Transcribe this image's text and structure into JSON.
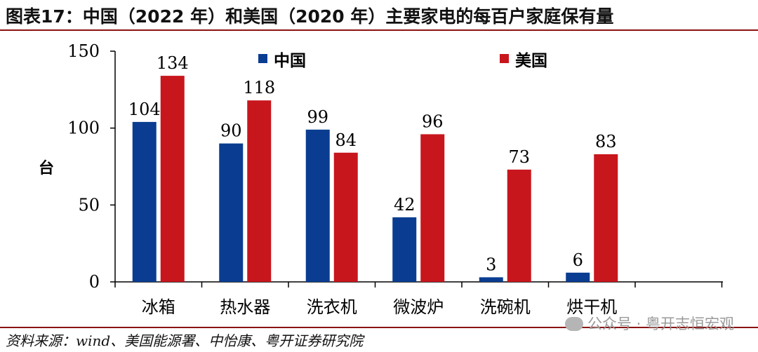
{
  "title": "图表17：中国（2022 年）和美国（2020 年）主要家电的每百户家庭保有量",
  "source": "资料来源：wind、美国能源署、中怡康、粤开证券研究院",
  "watermark": "公众号 · 粤开志恒宏观",
  "chart_data": {
    "type": "bar",
    "ylabel": "台",
    "ylim": [
      0,
      150
    ],
    "yticks": [
      0,
      50,
      100,
      150
    ],
    "categories": [
      "冰箱",
      "热水器",
      "洗衣机",
      "微波炉",
      "洗碗机",
      "烘干机"
    ],
    "series": [
      {
        "name": "中国",
        "values": [
          104,
          90,
          99,
          42,
          3,
          6
        ],
        "color": "#0a3d91"
      },
      {
        "name": "美国",
        "values": [
          134,
          118,
          84,
          96,
          73,
          83
        ],
        "color": "#c8161d"
      }
    ],
    "legend": "top",
    "grid": false
  }
}
